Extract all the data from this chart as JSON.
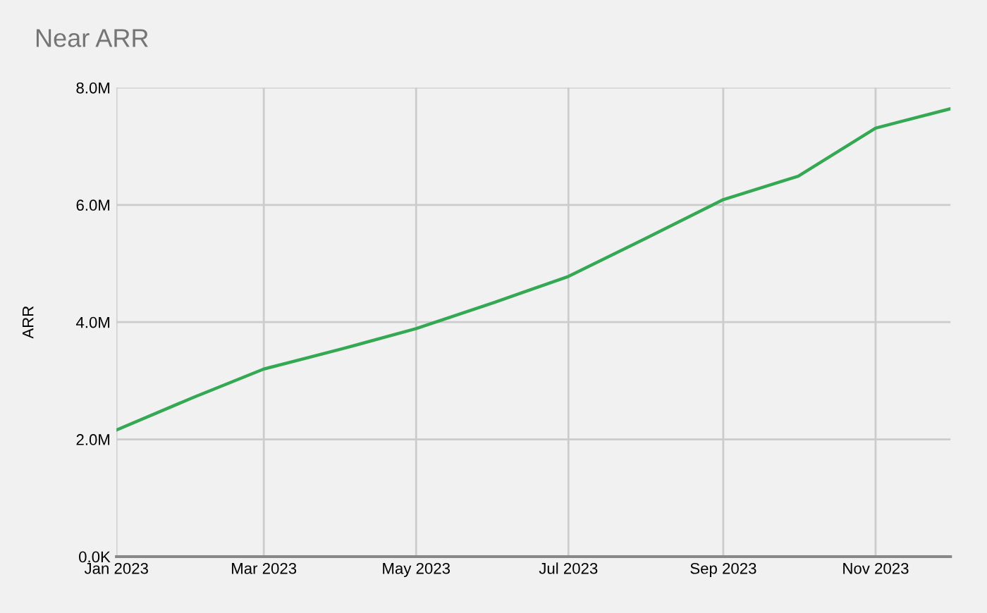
{
  "chart_data": {
    "type": "line",
    "title": "Near ARR",
    "ylabel": "ARR",
    "x": [
      "2023-01",
      "2023-02",
      "2023-03",
      "2023-04",
      "2023-05",
      "2023-06",
      "2023-07",
      "2023-08",
      "2023-09",
      "2023-10",
      "2023-11",
      "2023-12"
    ],
    "series": [
      {
        "color": "#34a853",
        "values": [
          2160000,
          2720000,
          3200000,
          3540000,
          3890000,
          4330000,
          4780000,
          5430000,
          6090000,
          6490000,
          7310000,
          7640000
        ]
      }
    ],
    "xlim": [
      "2023-01",
      "2023-12"
    ],
    "xticks": [
      {
        "value": "2023-01",
        "label": "Jan 2023"
      },
      {
        "value": "2023-03",
        "label": "Mar 2023"
      },
      {
        "value": "2023-05",
        "label": "May 2023"
      },
      {
        "value": "2023-07",
        "label": "Jul 2023"
      },
      {
        "value": "2023-09",
        "label": "Sep 2023"
      },
      {
        "value": "2023-11",
        "label": "Nov 2023"
      }
    ],
    "ylim": [
      0,
      8000000
    ],
    "yticks": [
      {
        "value": 0,
        "label": "0.0K"
      },
      {
        "value": 2000000,
        "label": "2.0M"
      },
      {
        "value": 4000000,
        "label": "4.0M"
      },
      {
        "value": 6000000,
        "label": "6.0M"
      },
      {
        "value": 8000000,
        "label": "8.0M"
      }
    ],
    "grid": true,
    "legend": false,
    "marker": "none",
    "line_style": "solid"
  }
}
